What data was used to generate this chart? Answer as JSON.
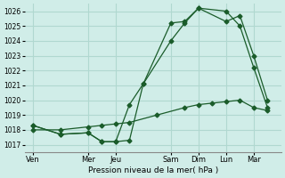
{
  "bg_color": "#d0ede8",
  "grid_color": "#b0d8d0",
  "line_color": "#1a5c2a",
  "x_labels": [
    "Ven",
    "Mer",
    "Jeu",
    "Sam",
    "Dim",
    "Lun",
    "Mar"
  ],
  "xtick_positions": [
    0,
    2,
    3,
    5,
    6,
    7,
    8
  ],
  "ylim": [
    1016.5,
    1026.5
  ],
  "yticks": [
    1017,
    1018,
    1019,
    1020,
    1021,
    1022,
    1023,
    1024,
    1025,
    1026
  ],
  "xlabel": "Pression niveau de la mer( hPa )",
  "series1": {
    "x": [
      0,
      1,
      2,
      2.5,
      3,
      3.5,
      4,
      5,
      5.5,
      6,
      7,
      7.5,
      8,
      8.5
    ],
    "y": [
      1018.3,
      1017.7,
      1017.8,
      1017.2,
      1017.2,
      1017.3,
      1021.1,
      1024.0,
      1025.2,
      1026.2,
      1026.0,
      1025.0,
      1022.2,
      1019.5
    ]
  },
  "series2": {
    "x": [
      0,
      1,
      2,
      2.5,
      3,
      3.5,
      4,
      5,
      5.5,
      6,
      7,
      7.5,
      8,
      8.5
    ],
    "y": [
      1018.3,
      1017.7,
      1017.8,
      1017.2,
      1017.2,
      1019.7,
      1021.1,
      1025.2,
      1025.3,
      1026.2,
      1025.3,
      1025.7,
      1023.0,
      1020.0
    ]
  },
  "series3": {
    "x": [
      0,
      1,
      2,
      2.5,
      3,
      3.5,
      4.5,
      5.5,
      6,
      6.5,
      7,
      7.5,
      8,
      8.5
    ],
    "y": [
      1018.0,
      1018.0,
      1018.2,
      1018.3,
      1018.4,
      1018.5,
      1019.0,
      1019.5,
      1019.7,
      1019.8,
      1019.9,
      1020.0,
      1019.5,
      1019.3
    ]
  },
  "xlim": [
    -0.3,
    9.0
  ]
}
